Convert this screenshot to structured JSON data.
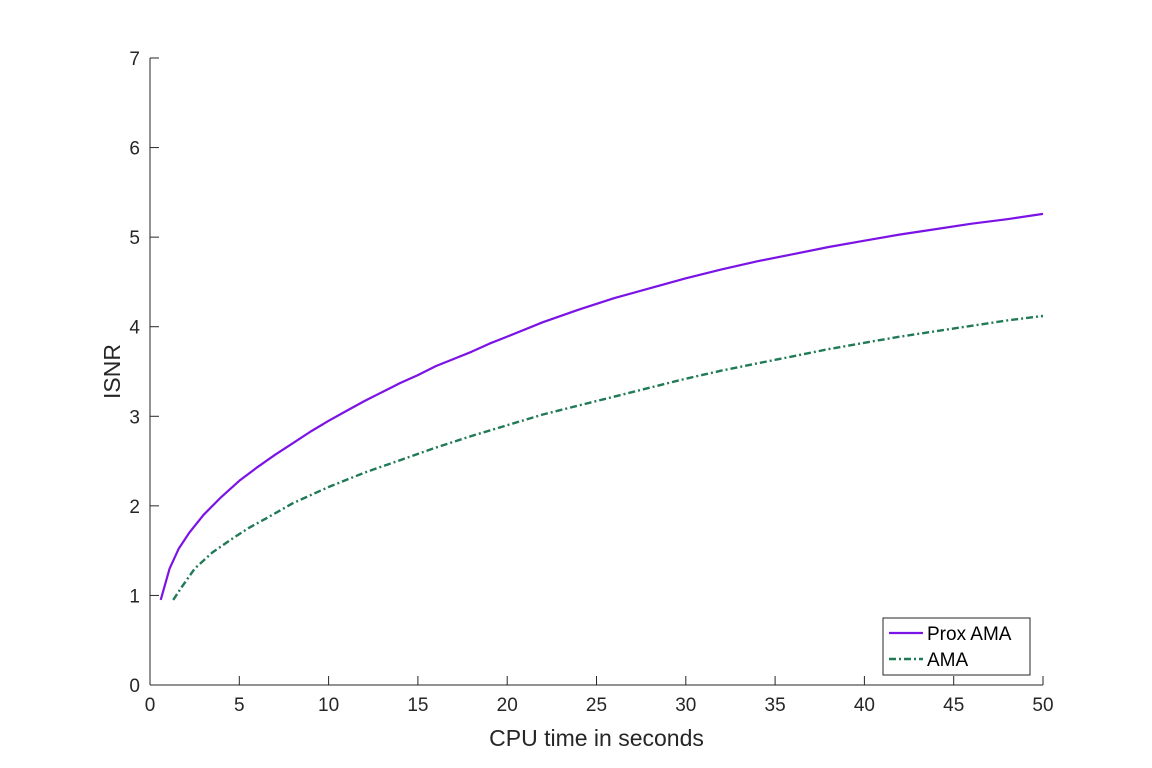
{
  "chart_data": {
    "type": "line",
    "title": "",
    "xlabel": "CPU time in seconds",
    "ylabel": "ISNR",
    "xlim": [
      0,
      50
    ],
    "ylim": [
      0,
      7
    ],
    "xticks": [
      0,
      5,
      10,
      15,
      20,
      25,
      30,
      35,
      40,
      45,
      50
    ],
    "yticks": [
      0,
      1,
      2,
      3,
      4,
      5,
      6,
      7
    ],
    "grid": false,
    "legend_position": "bottom-right",
    "series": [
      {
        "name": "Prox AMA",
        "color": "#7b13e6",
        "style": "solid",
        "x": [
          0.6,
          1.1,
          1.6,
          2.2,
          3.0,
          4.0,
          5.0,
          6.0,
          7.0,
          8.0,
          9.0,
          10.0,
          11.0,
          12.0,
          13.0,
          14.0,
          15.0,
          16.0,
          17.0,
          18.0,
          19.0,
          20.0,
          22.0,
          24.0,
          26.0,
          28.0,
          30.0,
          32.0,
          34.0,
          36.0,
          38.0,
          40.0,
          42.0,
          44.0,
          46.0,
          48.0,
          50.0
        ],
        "y": [
          0.95,
          1.3,
          1.52,
          1.7,
          1.9,
          2.1,
          2.28,
          2.43,
          2.57,
          2.7,
          2.83,
          2.95,
          3.06,
          3.17,
          3.27,
          3.37,
          3.46,
          3.56,
          3.64,
          3.72,
          3.81,
          3.89,
          4.05,
          4.19,
          4.32,
          4.43,
          4.54,
          4.64,
          4.73,
          4.81,
          4.89,
          4.96,
          5.03,
          5.09,
          5.15,
          5.2,
          5.26
        ]
      },
      {
        "name": "AMA",
        "color": "#1f7a55",
        "style": "dashdot",
        "x": [
          1.3,
          1.8,
          2.5,
          3.5,
          4.5,
          5.5,
          6.5,
          8.0,
          10.0,
          12.0,
          14.0,
          16.0,
          18.0,
          20.0,
          22.0,
          24.0,
          26.0,
          28.0,
          30.0,
          32.0,
          34.0,
          36.0,
          38.0,
          40.0,
          42.0,
          44.0,
          46.0,
          48.0,
          50.0
        ],
        "y": [
          0.95,
          1.1,
          1.3,
          1.48,
          1.62,
          1.75,
          1.86,
          2.03,
          2.21,
          2.37,
          2.51,
          2.65,
          2.78,
          2.9,
          3.02,
          3.12,
          3.22,
          3.32,
          3.42,
          3.51,
          3.59,
          3.67,
          3.75,
          3.82,
          3.89,
          3.95,
          4.01,
          4.07,
          4.12
        ]
      }
    ]
  }
}
